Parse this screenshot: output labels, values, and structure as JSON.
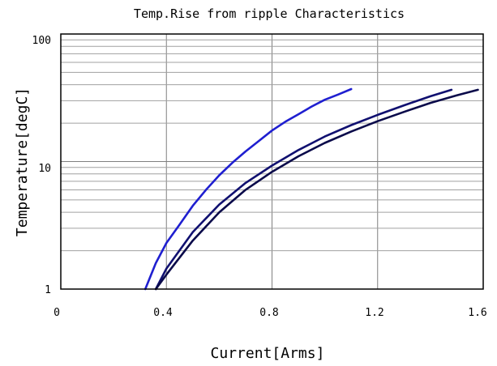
{
  "chart_data": {
    "type": "line",
    "title": "Temp.Rise from ripple Characteristics",
    "xlabel": "Current[Arms]",
    "ylabel": "Temperature[degC]",
    "xlim": [
      0,
      1.6
    ],
    "ylim": [
      1,
      100
    ],
    "y_scale": "log",
    "grid": true,
    "x_ticks": [
      "0",
      "0.4",
      "0.8",
      "1.2",
      "1.6"
    ],
    "y_ticks": [
      "1",
      "10",
      "100"
    ],
    "series": [
      {
        "color": "#1f1fd0",
        "x": [
          0.32,
          0.36,
          0.4,
          0.45,
          0.5,
          0.55,
          0.6,
          0.65,
          0.7,
          0.75,
          0.8,
          0.85,
          0.9,
          0.95,
          1.0,
          1.05,
          1.1
        ],
        "y": [
          1.0,
          1.6,
          2.3,
          3.2,
          4.5,
          6.0,
          7.8,
          9.8,
          12.0,
          14.5,
          17.5,
          20.5,
          23.5,
          27.0,
          30.5,
          33.5,
          37.0
        ]
      },
      {
        "color": "#101070",
        "x": [
          0.36,
          0.4,
          0.5,
          0.6,
          0.7,
          0.8,
          0.9,
          1.0,
          1.1,
          1.2,
          1.3,
          1.4,
          1.48
        ],
        "y": [
          1.0,
          1.45,
          2.8,
          4.6,
          6.8,
          9.3,
          12.3,
          15.7,
          19.3,
          23.2,
          27.6,
          32.5,
          36.5
        ]
      },
      {
        "color": "#0a0a4a",
        "x": [
          0.36,
          0.4,
          0.5,
          0.6,
          0.7,
          0.8,
          0.9,
          1.0,
          1.1,
          1.2,
          1.3,
          1.4,
          1.5,
          1.58
        ],
        "y": [
          1.0,
          1.3,
          2.4,
          4.0,
          6.0,
          8.3,
          11.0,
          14.0,
          17.2,
          20.7,
          24.5,
          28.8,
          33.0,
          36.5
        ]
      }
    ]
  }
}
